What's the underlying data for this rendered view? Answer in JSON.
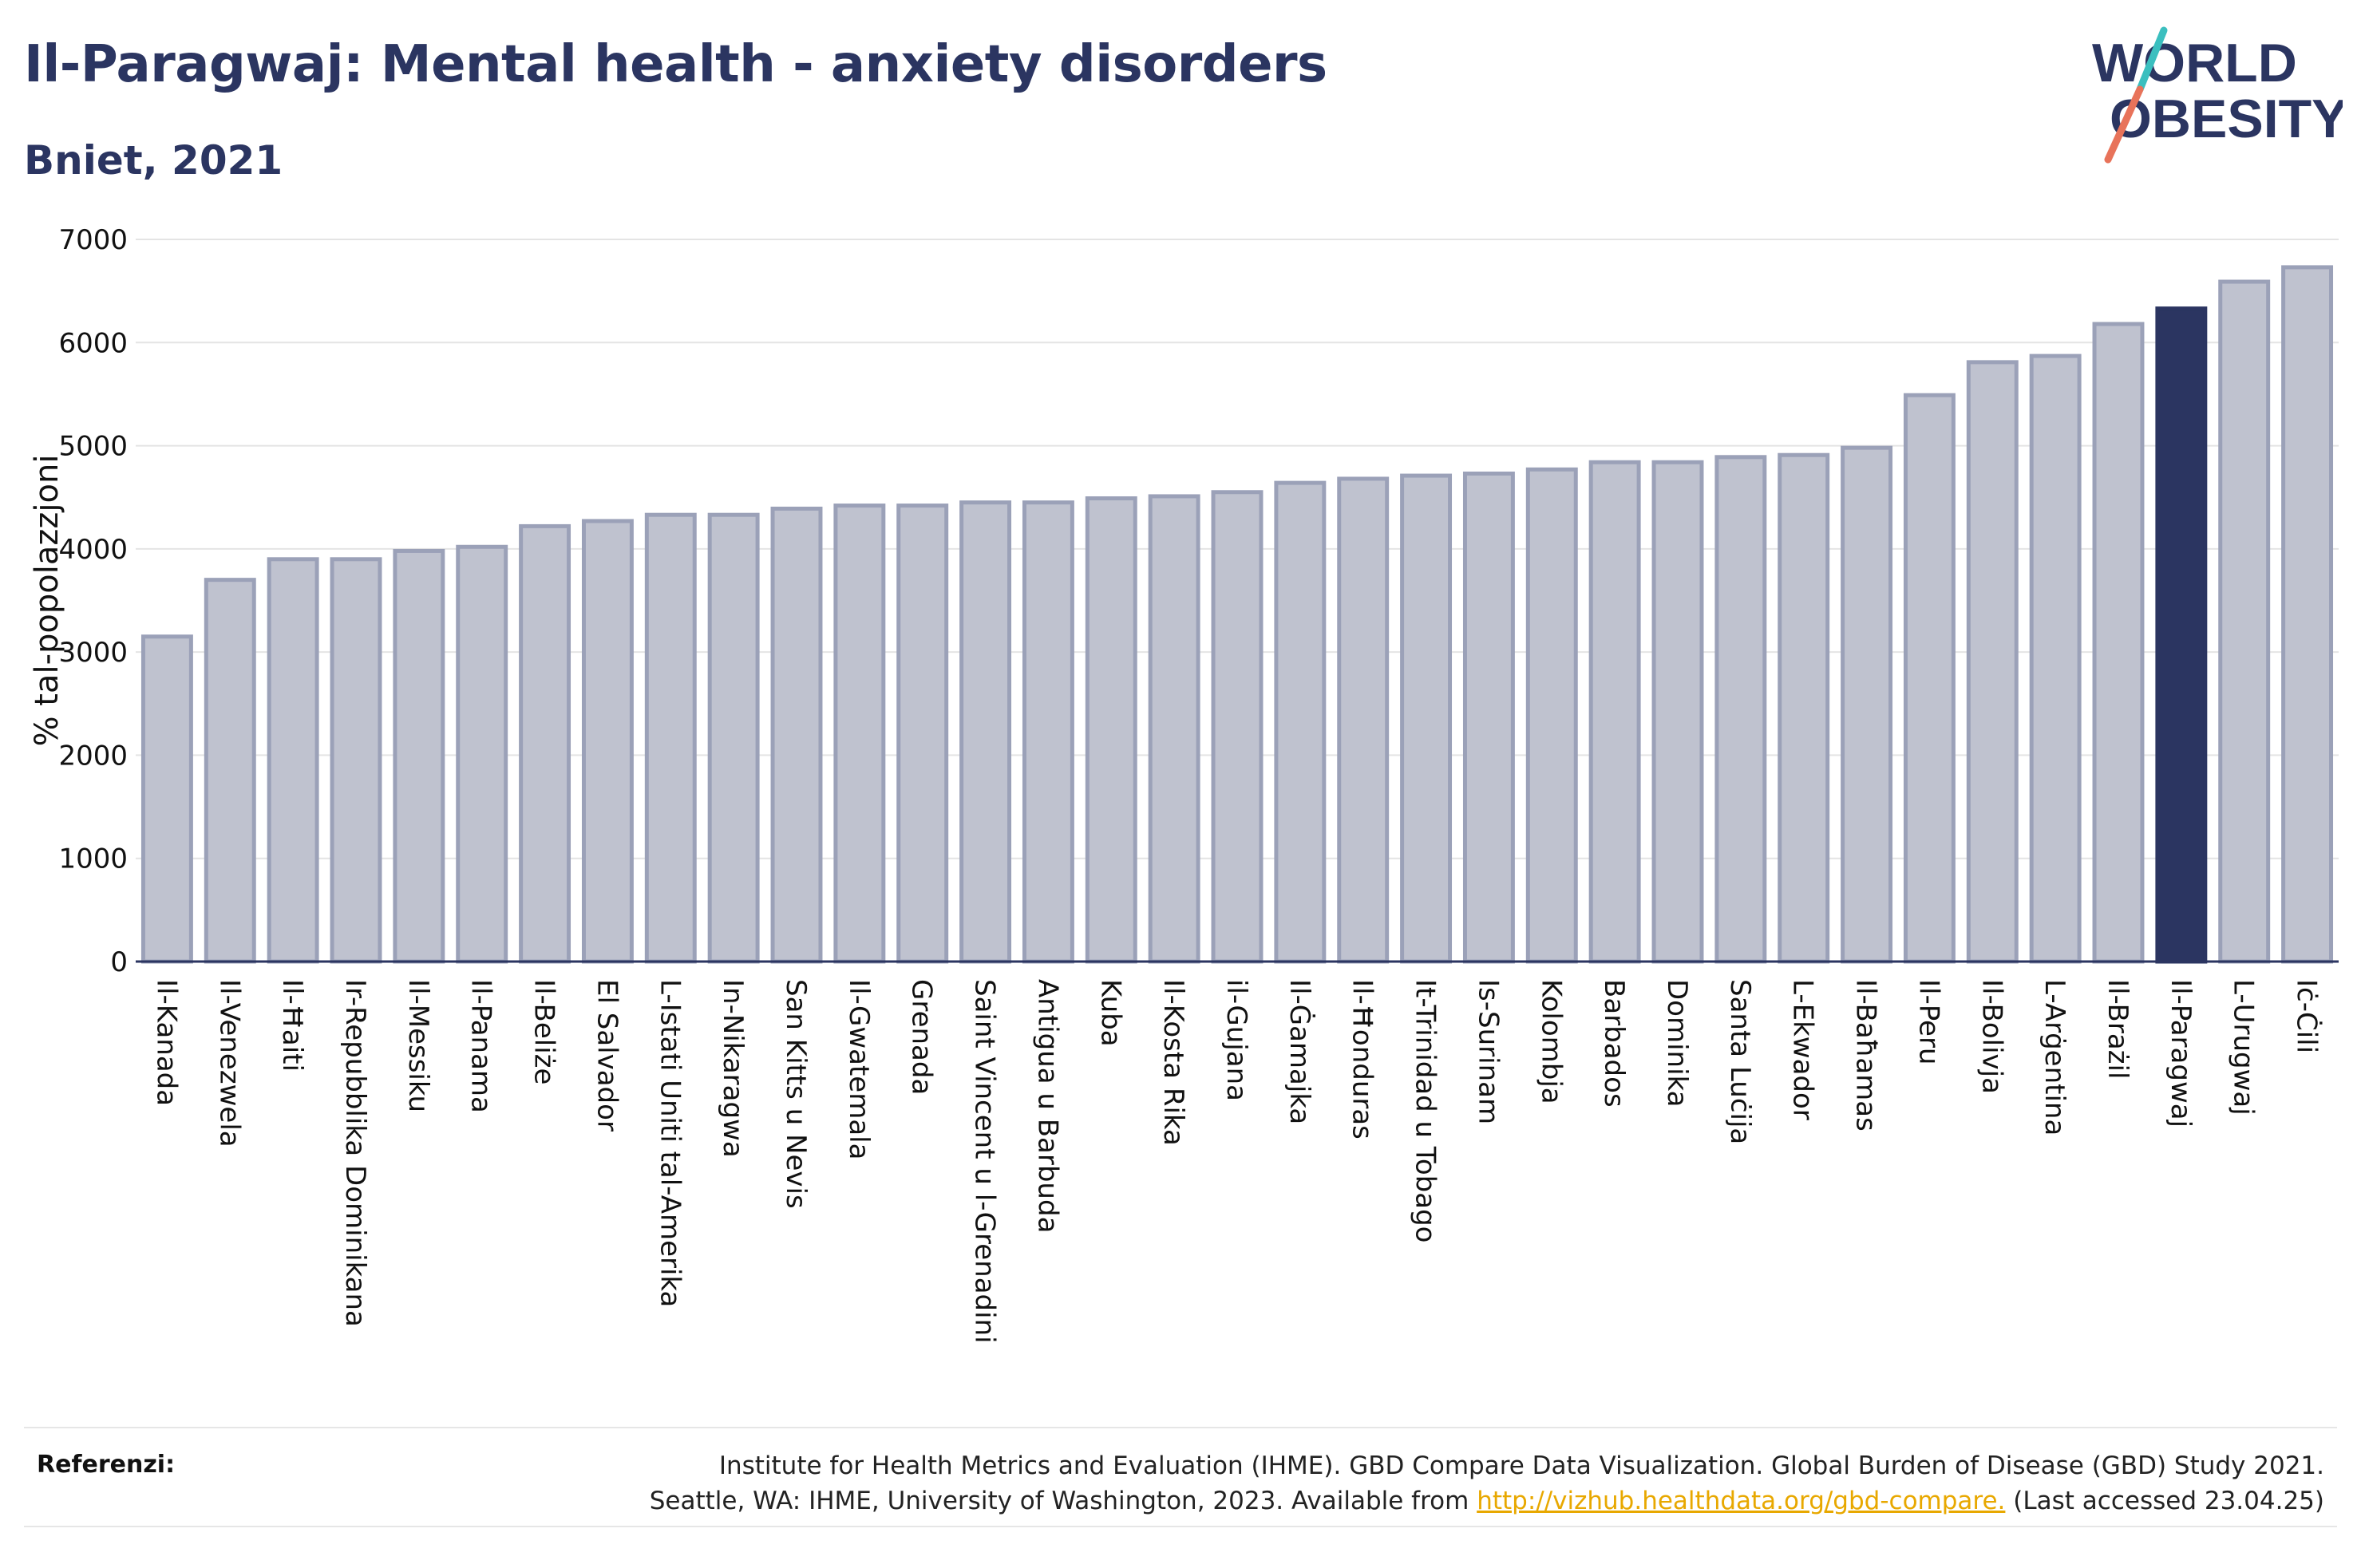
{
  "header": {
    "title": "Il-Paragwaj: Mental health - anxiety disorders",
    "subtitle": "Bniet, 2021"
  },
  "logo": {
    "line1": "WORLD",
    "line2": "OBESITY",
    "colors": {
      "text": "#2b3561",
      "slash_top": "#3bbfbf",
      "slash_bottom": "#e8735a"
    }
  },
  "chart_data": {
    "type": "bar",
    "title": "Il-Paragwaj: Mental health - anxiety disorders",
    "subtitle": "Bniet, 2021",
    "xlabel": "",
    "ylabel": "% tal-popolazzjoni",
    "ylim": [
      0,
      7000
    ],
    "yticks": [
      0,
      1000,
      2000,
      3000,
      4000,
      5000,
      6000,
      7000
    ],
    "grid": true,
    "highlight": "Il-Paragwaj",
    "colors": {
      "bar": "#bfc2cf",
      "bar_edge": "#9ba1b8",
      "highlight": "#2b3561",
      "axis": "#2b3561"
    },
    "categories": [
      "Il-Kanada",
      "Il-Venezwela",
      "Il-Ħaiti",
      "Ir-Repubblika Dominikana",
      "Il-Messiku",
      "Il-Panama",
      "Il-Beliże",
      "El Salvador",
      "L-Istati Uniti tal-Amerika",
      "In-Nikaragwa",
      "San Kitts u Nevis",
      "Il-Gwatemala",
      "Grenada",
      "Saint Vincent u l-Grenadini",
      "Antigua u Barbuda",
      "Kuba",
      "Il-Kosta Rika",
      "il-Gujana",
      "Il-Ġamajka",
      "Il-Ħonduras",
      "It-Trinidad u Tobago",
      "Is-Surinam",
      "Kolombja",
      "Barbados",
      "Dominika",
      "Santa Luċija",
      "L-Ekwador",
      "Il-Baħamas",
      "Il-Peru",
      "Il-Bolivja",
      "L-Arġentina",
      "Il-Brażil",
      "Il-Paragwaj",
      "L-Urugwaj",
      "Iċ-Ċili"
    ],
    "values": [
      3150,
      3700,
      3900,
      3900,
      3980,
      4020,
      4220,
      4270,
      4330,
      4330,
      4390,
      4420,
      4420,
      4450,
      4450,
      4490,
      4510,
      4550,
      4640,
      4680,
      4710,
      4730,
      4770,
      4840,
      4840,
      4890,
      4910,
      4980,
      5490,
      5810,
      5870,
      6180,
      6330,
      6590,
      6730
    ]
  },
  "references": {
    "label": "Referenzi:",
    "line1": "Institute for Health Metrics and Evaluation (IHME). GBD Compare Data Visualization. Global Burden of Disease (GBD) Study 2021.",
    "line2_before": "Seattle, WA: IHME, University of Washington, 2023. Available from ",
    "link": "http://vizhub.healthdata.org/gbd-compare.",
    "line2_after": " (Last accessed 23.04.25)"
  }
}
